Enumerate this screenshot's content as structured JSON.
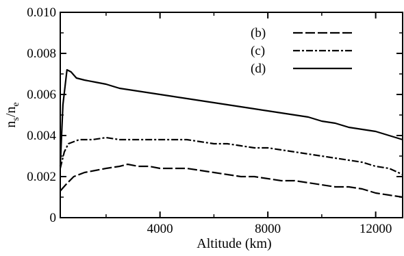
{
  "chart_data": {
    "type": "line",
    "title": "",
    "xlabel": "Altitude (km)",
    "ylabel_main": "n",
    "ylabel_sub1": "s",
    "ylabel_sep": "/n",
    "ylabel_sub2": "e",
    "xlim": [
      300,
      13000
    ],
    "ylim": [
      0,
      0.01
    ],
    "x_ticks": [
      4000,
      8000,
      12000
    ],
    "x_tick_labels": [
      "4000",
      "8000",
      "12000"
    ],
    "y_ticks": [
      0,
      0.002,
      0.004,
      0.006,
      0.008,
      0.01
    ],
    "y_tick_labels": [
      "0",
      "0.002",
      "0.004",
      "0.006",
      "0.008",
      "0.010"
    ],
    "grid": false,
    "legend_position": "top-right",
    "series": [
      {
        "name": "(b)",
        "style": "long-dash",
        "x": [
          300,
          500,
          800,
          1200,
          1600,
          2000,
          2500,
          2800,
          3200,
          3600,
          4000,
          4500,
          5000,
          5500,
          6000,
          6500,
          7000,
          7500,
          8000,
          8500,
          9000,
          9500,
          10000,
          10500,
          11000,
          11500,
          12000,
          12500,
          13000
        ],
        "y": [
          0.0013,
          0.0016,
          0.002,
          0.0022,
          0.0023,
          0.0024,
          0.0025,
          0.0026,
          0.0025,
          0.0025,
          0.0024,
          0.0024,
          0.0024,
          0.0023,
          0.0022,
          0.0021,
          0.002,
          0.002,
          0.0019,
          0.0018,
          0.0018,
          0.0017,
          0.0016,
          0.0015,
          0.0015,
          0.0014,
          0.0012,
          0.0011,
          0.001
        ]
      },
      {
        "name": "(c)",
        "style": "dash-dot",
        "x": [
          300,
          450,
          600,
          800,
          1000,
          1500,
          2000,
          2500,
          3000,
          3500,
          4000,
          4500,
          5000,
          5500,
          6000,
          6500,
          7000,
          7500,
          8000,
          8500,
          9000,
          9500,
          10000,
          10500,
          11000,
          11500,
          12000,
          12500,
          13000
        ],
        "y": [
          0.0024,
          0.0032,
          0.0036,
          0.0037,
          0.0038,
          0.0038,
          0.0039,
          0.0038,
          0.0038,
          0.0038,
          0.0038,
          0.0038,
          0.0038,
          0.0037,
          0.0036,
          0.0036,
          0.0035,
          0.0034,
          0.0034,
          0.0033,
          0.0032,
          0.0031,
          0.003,
          0.0029,
          0.0028,
          0.0027,
          0.0025,
          0.0024,
          0.0021
        ]
      },
      {
        "name": "(d)",
        "style": "solid",
        "x": [
          300,
          400,
          550,
          700,
          900,
          1200,
          1600,
          2000,
          2500,
          3000,
          3500,
          4000,
          4500,
          5000,
          5500,
          6000,
          6500,
          7000,
          7500,
          8000,
          8500,
          9000,
          9500,
          10000,
          10500,
          11000,
          11500,
          12000,
          12500,
          13000
        ],
        "y": [
          0.0025,
          0.0055,
          0.0072,
          0.0071,
          0.0068,
          0.0067,
          0.0066,
          0.0065,
          0.0063,
          0.0062,
          0.0061,
          0.006,
          0.0059,
          0.0058,
          0.0057,
          0.0056,
          0.0055,
          0.0054,
          0.0053,
          0.0052,
          0.0051,
          0.005,
          0.0049,
          0.0047,
          0.0046,
          0.0044,
          0.0043,
          0.0042,
          0.004,
          0.0038
        ]
      }
    ]
  }
}
